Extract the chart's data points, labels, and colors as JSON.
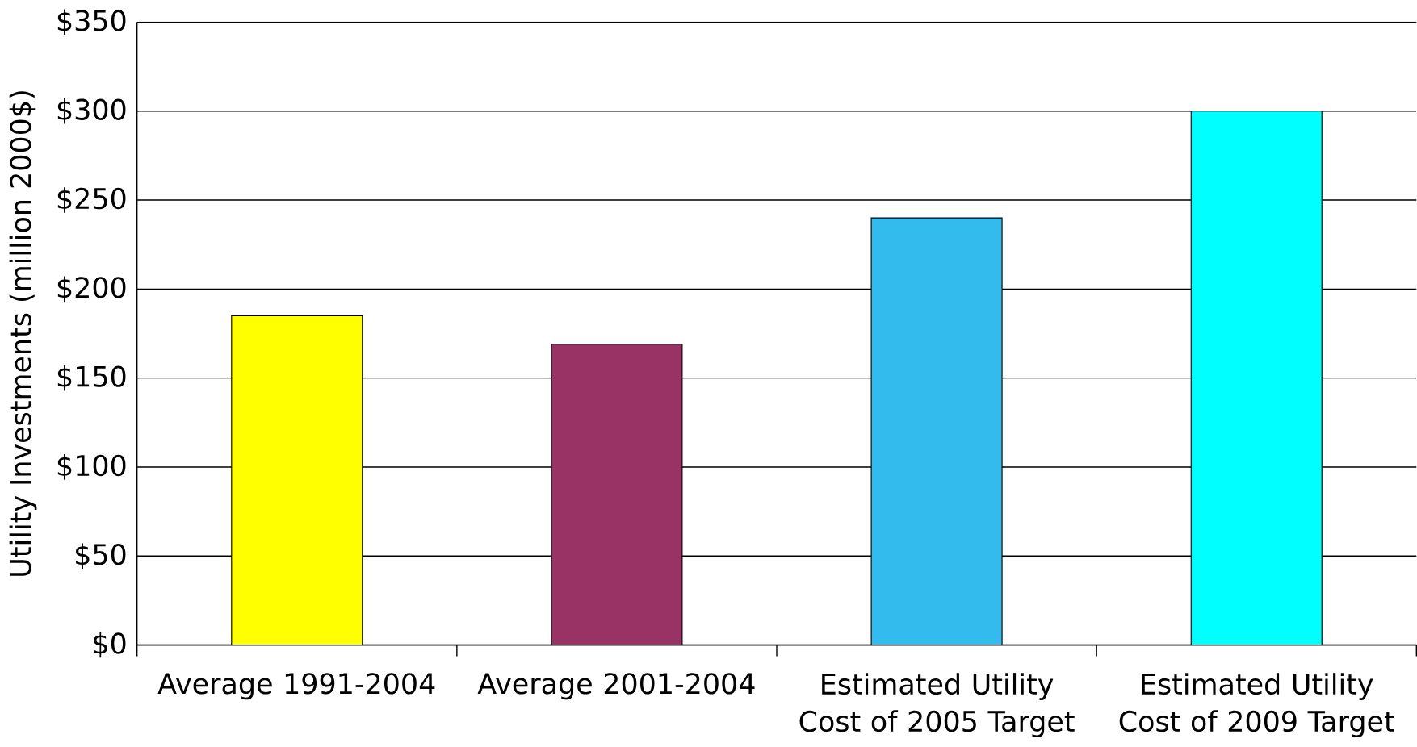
{
  "chart_data": {
    "type": "bar",
    "ylabel": "Utility Investments (million 2000$)",
    "categories": [
      "Average 1991-2004",
      "Average 2001-2004",
      "Estimated Utility Cost of 2005 Target",
      "Estimated Utility Cost of 2009 Target"
    ],
    "values": [
      185,
      169,
      240,
      300
    ],
    "colors": [
      "#ffff00",
      "#993366",
      "#33bbee",
      "#00ffff"
    ],
    "ylim": [
      0,
      350
    ],
    "yticks": [
      {
        "value": 0,
        "label": "$0"
      },
      {
        "value": 50,
        "label": "$50"
      },
      {
        "value": 100,
        "label": "$100"
      },
      {
        "value": 150,
        "label": "$150"
      },
      {
        "value": 200,
        "label": "$200"
      },
      {
        "value": 250,
        "label": "$250"
      },
      {
        "value": 300,
        "label": "$300"
      },
      {
        "value": 350,
        "label": "$350"
      }
    ],
    "grid": "y"
  }
}
